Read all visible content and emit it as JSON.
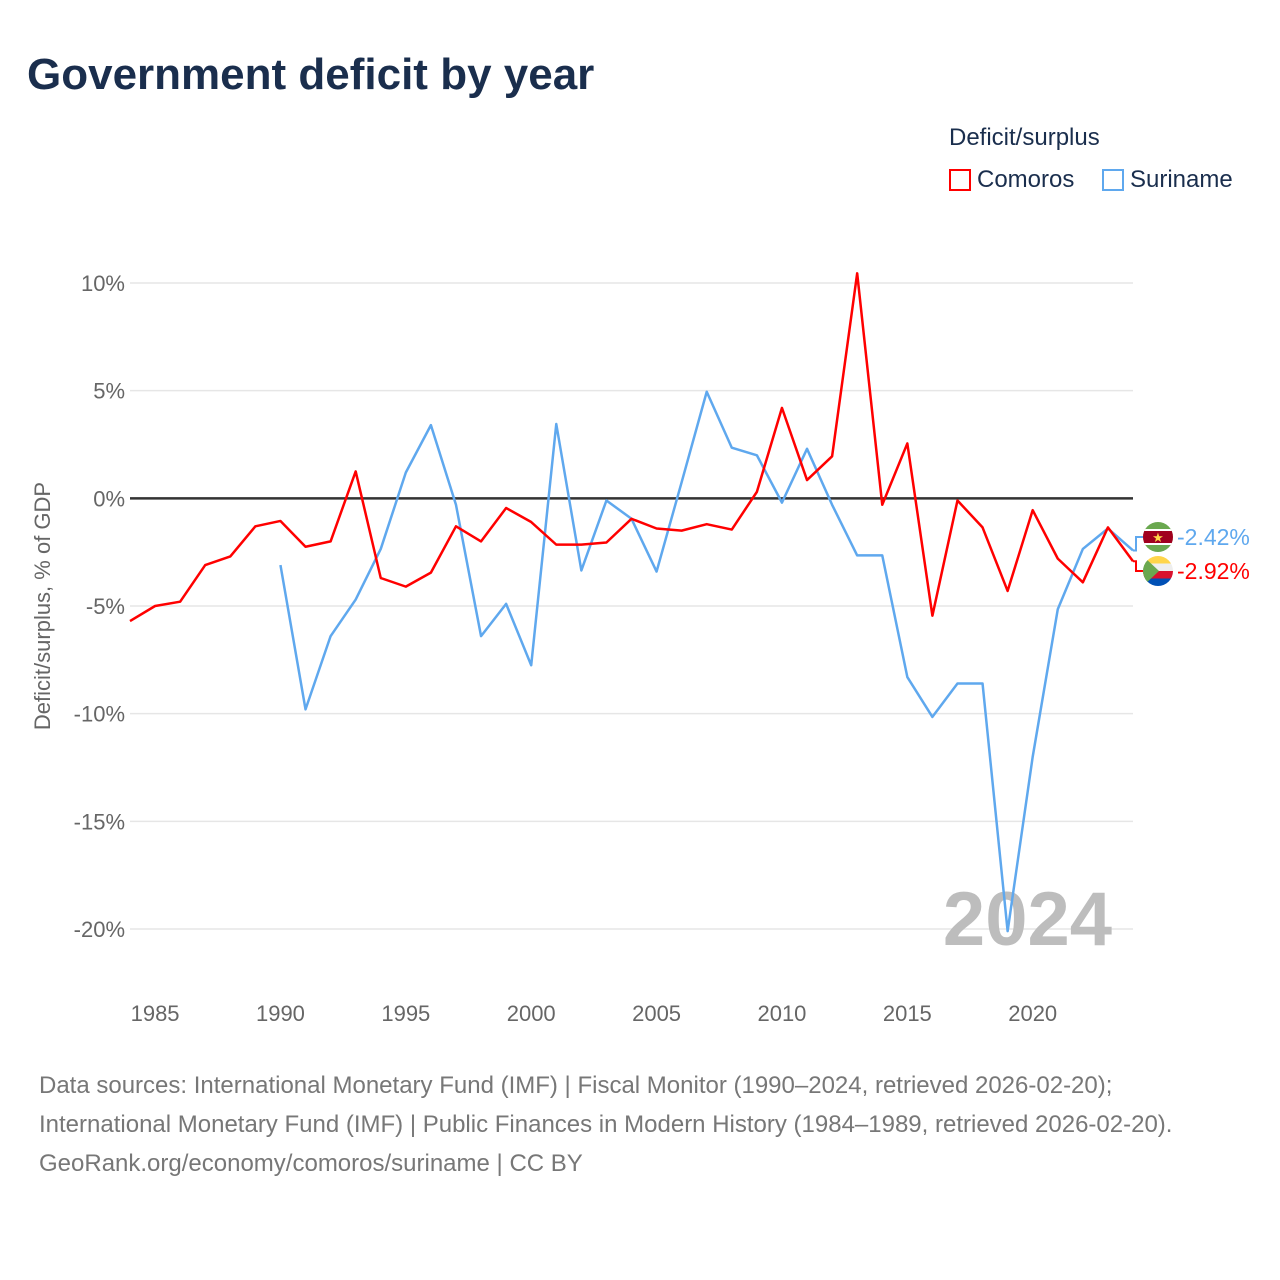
{
  "title": "Government deficit by year",
  "legend_title": "Deficit/surplus",
  "footer": {
    "sources": "Data sources: International Monetary Fund (IMF) | Fiscal Monitor (1990–2024, retrieved 2026-02-20); International Monetary Fund (IMF) | Public Finances in Modern History (1984–1989, retrieved 2026-02-20).",
    "credit": "GeoRank.org/economy/comoros/suriname | CC BY"
  },
  "chart_data": {
    "type": "line",
    "title": "Government deficit by year",
    "xlabel": "",
    "ylabel": "Deficit/surplus, % of GDP",
    "xlim": [
      1984,
      2024
    ],
    "ylim": [
      -20,
      10
    ],
    "x_ticks": [
      1985,
      1990,
      1995,
      2000,
      2005,
      2010,
      2015,
      2020
    ],
    "y_ticks": [
      10,
      5,
      0,
      -5,
      -10,
      -15,
      -20
    ],
    "y_tick_labels": [
      "10%",
      "5%",
      "0%",
      "-5%",
      "-10%",
      "-15%",
      "-20%"
    ],
    "year_watermark": "2024",
    "legend_position": "top-right",
    "series": [
      {
        "name": "Comoros",
        "color": "#ff0000",
        "end_label": "-2.92%",
        "flag": "comoros-flag",
        "x": [
          1984,
          1985,
          1986,
          1987,
          1988,
          1989,
          1990,
          1991,
          1992,
          1993,
          1994,
          1995,
          1996,
          1997,
          1998,
          1999,
          2000,
          2001,
          2002,
          2003,
          2004,
          2005,
          2006,
          2007,
          2008,
          2009,
          2010,
          2011,
          2012,
          2013,
          2014,
          2015,
          2016,
          2017,
          2018,
          2019,
          2020,
          2021,
          2022,
          2023,
          2024
        ],
        "values": [
          -5.7,
          -5.0,
          -4.8,
          -3.1,
          -2.7,
          -1.3,
          -1.05,
          -2.25,
          -2.0,
          1.25,
          -3.7,
          -4.1,
          -3.45,
          -1.3,
          -2.0,
          -0.45,
          -1.1,
          -2.15,
          -2.15,
          -2.05,
          -0.95,
          -1.4,
          -1.5,
          -1.2,
          -1.45,
          0.3,
          4.2,
          0.85,
          1.95,
          10.45,
          -0.3,
          2.55,
          -5.45,
          -0.1,
          -1.35,
          -4.3,
          -0.55,
          -2.8,
          -3.9,
          -1.35,
          -2.92
        ]
      },
      {
        "name": "Suriname",
        "color": "#5fa8ee",
        "end_label": "-2.42%",
        "flag": "suriname-flag",
        "x": [
          1990,
          1991,
          1992,
          1993,
          1994,
          1995,
          1996,
          1997,
          1998,
          1999,
          2000,
          2001,
          2002,
          2003,
          2004,
          2005,
          2006,
          2007,
          2008,
          2009,
          2010,
          2011,
          2012,
          2013,
          2014,
          2015,
          2016,
          2017,
          2018,
          2019,
          2020,
          2021,
          2022,
          2023,
          2024
        ],
        "values": [
          -3.1,
          -9.8,
          -6.4,
          -4.7,
          -2.35,
          1.2,
          3.4,
          -0.3,
          -6.4,
          -4.9,
          -7.75,
          3.45,
          -3.35,
          -0.1,
          -0.95,
          -3.4,
          0.75,
          4.95,
          2.35,
          2.0,
          -0.2,
          2.3,
          -0.3,
          -2.65,
          -2.65,
          -8.3,
          -10.15,
          -8.6,
          -8.6,
          -20.1,
          -12.0,
          -5.15,
          -2.35,
          -1.4,
          -2.42
        ]
      }
    ]
  }
}
